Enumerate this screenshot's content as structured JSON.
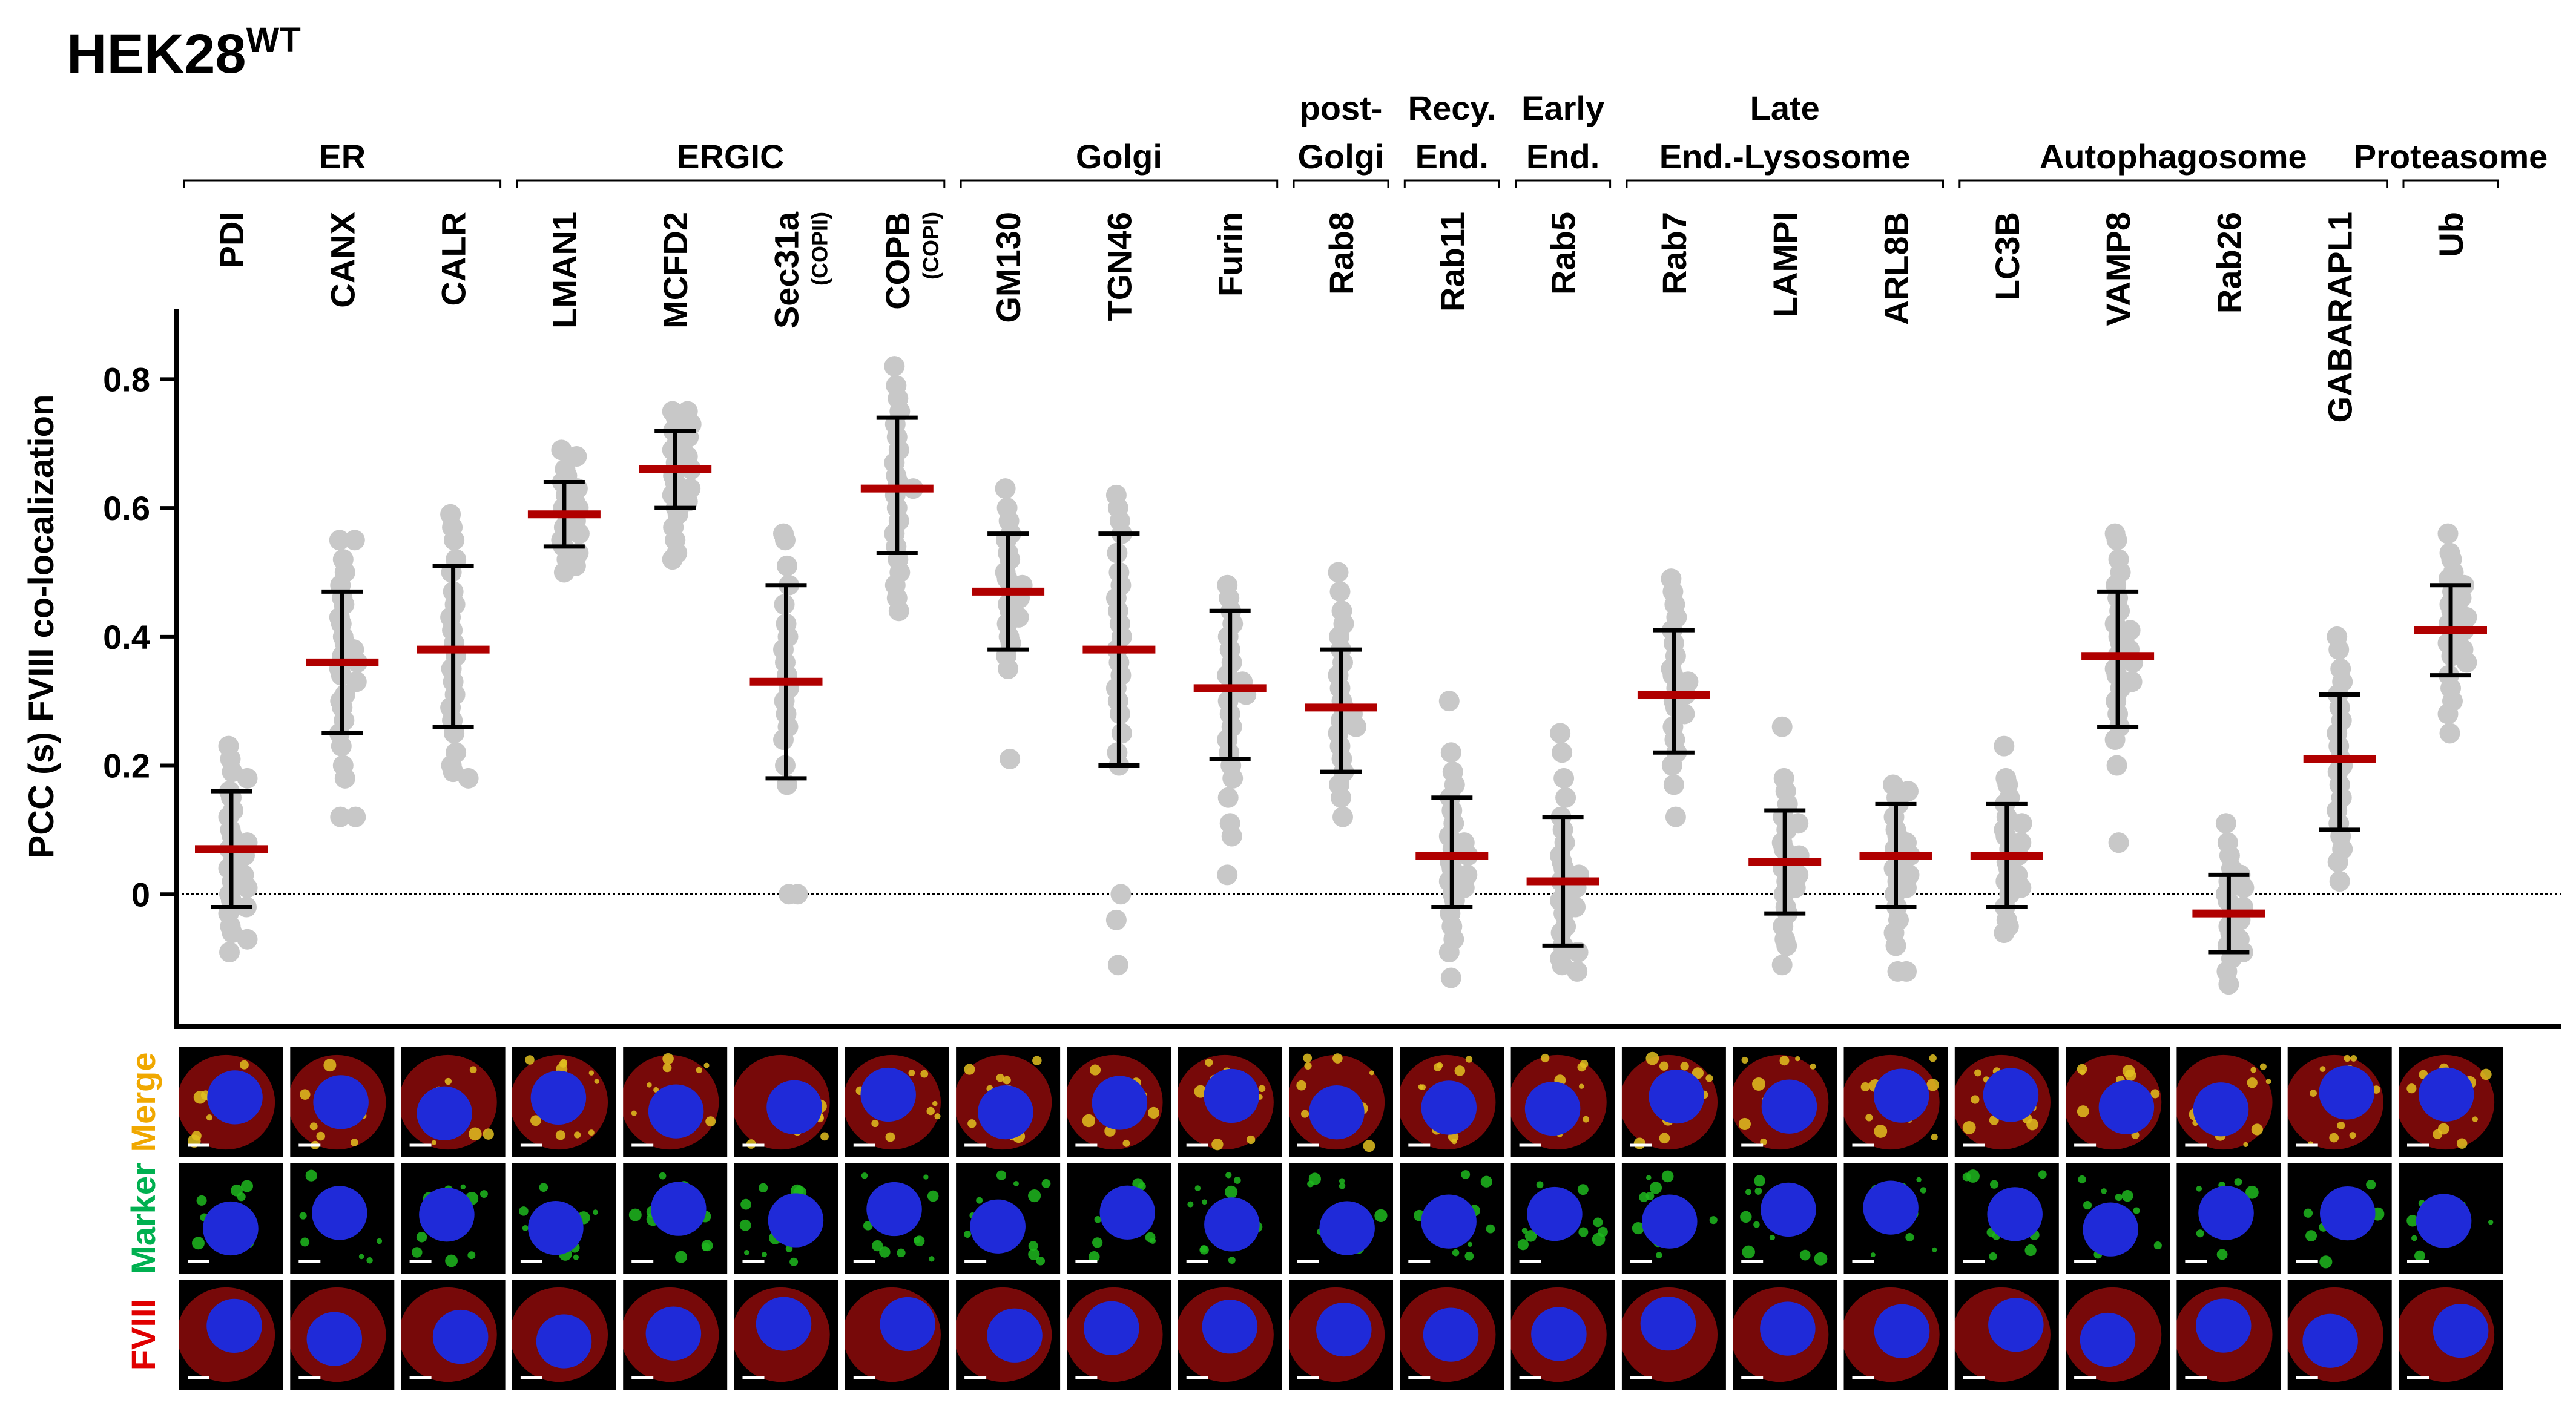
{
  "figure": {
    "title_main": "HEK28",
    "title_sup": "WT"
  },
  "chart_data": {
    "type": "scatter",
    "title": "HEK28WT",
    "ylabel": "PCC (s) FVIII co-localization",
    "ylim": [
      -0.2,
      0.9
    ],
    "yticks": [
      0,
      0.2,
      0.4,
      0.6,
      0.8
    ],
    "ytick_labels": [
      "0",
      "0.2",
      "0.4",
      "0.6",
      "0.8"
    ],
    "reference_line": 0,
    "groups": [
      {
        "label_lines": [
          "ER"
        ],
        "from": 0,
        "to": 2
      },
      {
        "label_lines": [
          "ERGIC"
        ],
        "from": 3,
        "to": 6
      },
      {
        "label_lines": [
          "Golgi"
        ],
        "from": 7,
        "to": 9
      },
      {
        "label_lines": [
          "post-",
          "Golgi"
        ],
        "from": 10,
        "to": 10
      },
      {
        "label_lines": [
          "Recy.",
          "End."
        ],
        "from": 11,
        "to": 11
      },
      {
        "label_lines": [
          "Early",
          "End."
        ],
        "from": 12,
        "to": 12
      },
      {
        "label_lines": [
          "Late",
          "End.-Lysosome"
        ],
        "from": 13,
        "to": 15
      },
      {
        "label_lines": [
          "Autophagosome"
        ],
        "from": 16,
        "to": 19
      },
      {
        "label_lines": [
          "Proteasome"
        ],
        "from": 20,
        "to": 20
      }
    ],
    "markers": [
      {
        "name": "PDI",
        "sub": "",
        "mean": 0.07,
        "sd_low": -0.02,
        "sd_high": 0.16,
        "points": [
          0.23,
          0.21,
          0.19,
          0.18,
          0.16,
          0.15,
          0.13,
          0.12,
          0.1,
          0.09,
          0.08,
          0.07,
          0.06,
          0.05,
          0.04,
          0.03,
          0.02,
          0.01,
          0.0,
          -0.01,
          -0.02,
          -0.03,
          -0.05,
          -0.06,
          -0.07,
          -0.09
        ]
      },
      {
        "name": "CANX",
        "sub": "",
        "mean": 0.36,
        "sd_low": 0.25,
        "sd_high": 0.47,
        "points": [
          0.55,
          0.55,
          0.52,
          0.5,
          0.48,
          0.46,
          0.45,
          0.43,
          0.42,
          0.4,
          0.39,
          0.38,
          0.37,
          0.36,
          0.35,
          0.34,
          0.33,
          0.31,
          0.3,
          0.29,
          0.27,
          0.25,
          0.23,
          0.2,
          0.18,
          0.12,
          0.12
        ]
      },
      {
        "name": "CALR",
        "sub": "",
        "mean": 0.38,
        "sd_low": 0.26,
        "sd_high": 0.51,
        "points": [
          0.59,
          0.57,
          0.55,
          0.52,
          0.5,
          0.47,
          0.45,
          0.43,
          0.41,
          0.39,
          0.37,
          0.35,
          0.33,
          0.31,
          0.29,
          0.27,
          0.25,
          0.22,
          0.2,
          0.19,
          0.18
        ]
      },
      {
        "name": "LMAN1",
        "sub": "",
        "mean": 0.59,
        "sd_low": 0.54,
        "sd_high": 0.64,
        "points": [
          0.69,
          0.68,
          0.66,
          0.65,
          0.64,
          0.63,
          0.62,
          0.61,
          0.6,
          0.6,
          0.59,
          0.58,
          0.57,
          0.56,
          0.55,
          0.54,
          0.53,
          0.52,
          0.51,
          0.5
        ]
      },
      {
        "name": "MCFD2",
        "sub": "",
        "mean": 0.66,
        "sd_low": 0.6,
        "sd_high": 0.72,
        "points": [
          0.75,
          0.75,
          0.74,
          0.73,
          0.72,
          0.71,
          0.7,
          0.69,
          0.68,
          0.67,
          0.66,
          0.65,
          0.64,
          0.63,
          0.62,
          0.61,
          0.6,
          0.59,
          0.57,
          0.55,
          0.53,
          0.52
        ]
      },
      {
        "name": "Sec31a",
        "sub": "(COPII)",
        "mean": 0.33,
        "sd_low": 0.18,
        "sd_high": 0.48,
        "points": [
          0.56,
          0.55,
          0.51,
          0.48,
          0.45,
          0.42,
          0.4,
          0.38,
          0.36,
          0.34,
          0.32,
          0.3,
          0.28,
          0.26,
          0.24,
          0.2,
          0.17,
          0.0,
          0.0
        ]
      },
      {
        "name": "COPB",
        "sub": "(COPI)",
        "mean": 0.63,
        "sd_low": 0.53,
        "sd_high": 0.74,
        "points": [
          0.82,
          0.79,
          0.77,
          0.75,
          0.73,
          0.71,
          0.69,
          0.67,
          0.65,
          0.64,
          0.63,
          0.62,
          0.6,
          0.58,
          0.56,
          0.54,
          0.52,
          0.5,
          0.48,
          0.46,
          0.44
        ]
      },
      {
        "name": "GM130",
        "sub": "",
        "mean": 0.47,
        "sd_low": 0.38,
        "sd_high": 0.56,
        "points": [
          0.63,
          0.6,
          0.58,
          0.56,
          0.55,
          0.53,
          0.52,
          0.5,
          0.49,
          0.48,
          0.47,
          0.46,
          0.45,
          0.44,
          0.43,
          0.42,
          0.4,
          0.39,
          0.37,
          0.35,
          0.21
        ]
      },
      {
        "name": "TGN46",
        "sub": "",
        "mean": 0.38,
        "sd_low": 0.2,
        "sd_high": 0.56,
        "points": [
          0.62,
          0.6,
          0.58,
          0.56,
          0.53,
          0.5,
          0.48,
          0.46,
          0.44,
          0.42,
          0.4,
          0.38,
          0.36,
          0.34,
          0.32,
          0.3,
          0.28,
          0.25,
          0.22,
          0.2,
          0.0,
          -0.04,
          -0.11
        ]
      },
      {
        "name": "Furin",
        "sub": "",
        "mean": 0.32,
        "sd_low": 0.21,
        "sd_high": 0.44,
        "points": [
          0.48,
          0.46,
          0.44,
          0.42,
          0.4,
          0.38,
          0.36,
          0.34,
          0.33,
          0.32,
          0.31,
          0.3,
          0.28,
          0.26,
          0.24,
          0.22,
          0.2,
          0.18,
          0.15,
          0.11,
          0.09,
          0.03
        ]
      },
      {
        "name": "Rab8",
        "sub": "",
        "mean": 0.29,
        "sd_low": 0.19,
        "sd_high": 0.38,
        "points": [
          0.5,
          0.47,
          0.44,
          0.42,
          0.4,
          0.38,
          0.36,
          0.34,
          0.32,
          0.3,
          0.29,
          0.28,
          0.27,
          0.26,
          0.25,
          0.23,
          0.21,
          0.19,
          0.17,
          0.15,
          0.12
        ]
      },
      {
        "name": "Rab11",
        "sub": "",
        "mean": 0.06,
        "sd_low": -0.02,
        "sd_high": 0.15,
        "points": [
          0.3,
          0.22,
          0.19,
          0.17,
          0.15,
          0.13,
          0.11,
          0.09,
          0.08,
          0.07,
          0.06,
          0.05,
          0.04,
          0.03,
          0.02,
          0.01,
          0.0,
          -0.01,
          -0.03,
          -0.05,
          -0.07,
          -0.09,
          -0.13
        ]
      },
      {
        "name": "Rab5",
        "sub": "",
        "mean": 0.02,
        "sd_low": -0.08,
        "sd_high": 0.12,
        "points": [
          0.25,
          0.22,
          0.18,
          0.15,
          0.12,
          0.1,
          0.08,
          0.06,
          0.05,
          0.04,
          0.03,
          0.02,
          0.01,
          0.0,
          -0.01,
          -0.02,
          -0.03,
          -0.05,
          -0.06,
          -0.08,
          -0.09,
          -0.1,
          -0.11,
          -0.12
        ]
      },
      {
        "name": "Rab7",
        "sub": "",
        "mean": 0.31,
        "sd_low": 0.22,
        "sd_high": 0.41,
        "points": [
          0.49,
          0.47,
          0.45,
          0.43,
          0.41,
          0.39,
          0.37,
          0.35,
          0.34,
          0.33,
          0.32,
          0.31,
          0.3,
          0.29,
          0.28,
          0.26,
          0.24,
          0.22,
          0.2,
          0.17,
          0.12
        ]
      },
      {
        "name": "LAMPI",
        "sub": "",
        "mean": 0.05,
        "sd_low": -0.03,
        "sd_high": 0.13,
        "points": [
          0.26,
          0.18,
          0.16,
          0.14,
          0.12,
          0.11,
          0.1,
          0.08,
          0.07,
          0.06,
          0.05,
          0.04,
          0.03,
          0.02,
          0.01,
          0.0,
          -0.02,
          -0.03,
          -0.05,
          -0.07,
          -0.08,
          -0.11
        ]
      },
      {
        "name": "ARL8B",
        "sub": "",
        "mean": 0.06,
        "sd_low": -0.02,
        "sd_high": 0.14,
        "points": [
          0.17,
          0.16,
          0.15,
          0.14,
          0.12,
          0.1,
          0.09,
          0.08,
          0.07,
          0.06,
          0.05,
          0.04,
          0.03,
          0.02,
          0.01,
          0.0,
          -0.02,
          -0.04,
          -0.06,
          -0.08,
          -0.12,
          -0.12
        ]
      },
      {
        "name": "LC3B",
        "sub": "",
        "mean": 0.06,
        "sd_low": -0.02,
        "sd_high": 0.14,
        "points": [
          0.23,
          0.18,
          0.17,
          0.15,
          0.14,
          0.12,
          0.11,
          0.1,
          0.09,
          0.08,
          0.07,
          0.06,
          0.05,
          0.04,
          0.03,
          0.02,
          0.01,
          0.0,
          -0.02,
          -0.04,
          -0.05,
          -0.06
        ]
      },
      {
        "name": "VAMP8",
        "sub": "",
        "mean": 0.37,
        "sd_low": 0.26,
        "sd_high": 0.47,
        "points": [
          0.56,
          0.55,
          0.52,
          0.5,
          0.48,
          0.46,
          0.44,
          0.42,
          0.41,
          0.4,
          0.39,
          0.38,
          0.37,
          0.36,
          0.35,
          0.34,
          0.33,
          0.32,
          0.3,
          0.28,
          0.26,
          0.24,
          0.2,
          0.08
        ]
      },
      {
        "name": "Rab26",
        "sub": "",
        "mean": -0.03,
        "sd_low": -0.09,
        "sd_high": 0.03,
        "points": [
          0.11,
          0.08,
          0.06,
          0.04,
          0.03,
          0.02,
          0.01,
          0.0,
          -0.01,
          -0.02,
          -0.03,
          -0.04,
          -0.05,
          -0.06,
          -0.07,
          -0.08,
          -0.09,
          -0.1,
          -0.12,
          -0.14
        ]
      },
      {
        "name": "GABARAPL1",
        "sub": "",
        "mean": 0.21,
        "sd_low": 0.1,
        "sd_high": 0.31,
        "points": [
          0.4,
          0.38,
          0.35,
          0.33,
          0.31,
          0.29,
          0.27,
          0.25,
          0.23,
          0.21,
          0.2,
          0.19,
          0.17,
          0.15,
          0.13,
          0.11,
          0.09,
          0.07,
          0.05,
          0.02
        ]
      },
      {
        "name": "Ub",
        "sub": "",
        "mean": 0.41,
        "sd_low": 0.34,
        "sd_high": 0.48,
        "points": [
          0.56,
          0.53,
          0.52,
          0.5,
          0.49,
          0.48,
          0.47,
          0.46,
          0.45,
          0.44,
          0.43,
          0.42,
          0.41,
          0.4,
          0.39,
          0.38,
          0.37,
          0.36,
          0.34,
          0.32,
          0.3,
          0.28,
          0.25
        ]
      }
    ]
  },
  "micrograph_rows": [
    {
      "label_parts": [
        {
          "text": "Merge",
          "color": "#f0a800"
        },
        {
          "text": "",
          "color": "#000000"
        }
      ],
      "channel": "merge"
    },
    {
      "label_parts": [
        {
          "text": "Marker",
          "color": "#00b050"
        },
        {
          "text": "",
          "color": "#000000"
        }
      ],
      "channel": "marker"
    },
    {
      "label_parts": [
        {
          "text": "FVIII",
          "color": "#e00000"
        },
        {
          "text": "",
          "color": "#000000"
        }
      ],
      "channel": "fviii"
    }
  ],
  "colors": {
    "point": "#c8c8c8",
    "mean": "#b00000",
    "errorbar": "#000000",
    "nucleus": "#1f2ad8",
    "green": "#1fb81f",
    "red": "#d81010",
    "yellow": "#e0c020"
  }
}
